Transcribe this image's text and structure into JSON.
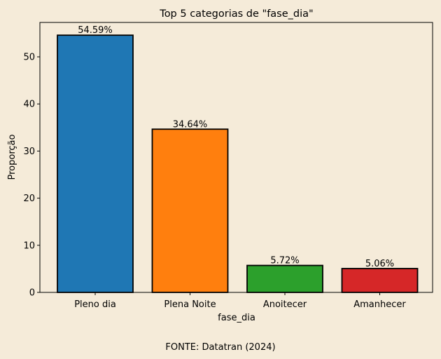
{
  "chart_data": {
    "type": "bar",
    "title": "Top 5 categorias de \"fase_dia\"",
    "xlabel": "fase_dia",
    "ylabel": "Proporção",
    "categories": [
      "Pleno dia",
      "Plena Noite",
      "Anoitecer",
      "Amanhecer"
    ],
    "values": [
      54.59,
      34.64,
      5.72,
      5.06
    ],
    "value_labels": [
      "54.59%",
      "34.64%",
      "5.72%",
      "5.06%"
    ],
    "colors": [
      "#1f77b4",
      "#ff7f0e",
      "#2ca02c",
      "#d62728"
    ],
    "ylim": [
      0,
      57.3
    ],
    "yticks": [
      0,
      10,
      20,
      30,
      40,
      50
    ],
    "grid": false,
    "background": "#f5ebd9"
  },
  "caption": "FONTE: Datatran (2024)"
}
